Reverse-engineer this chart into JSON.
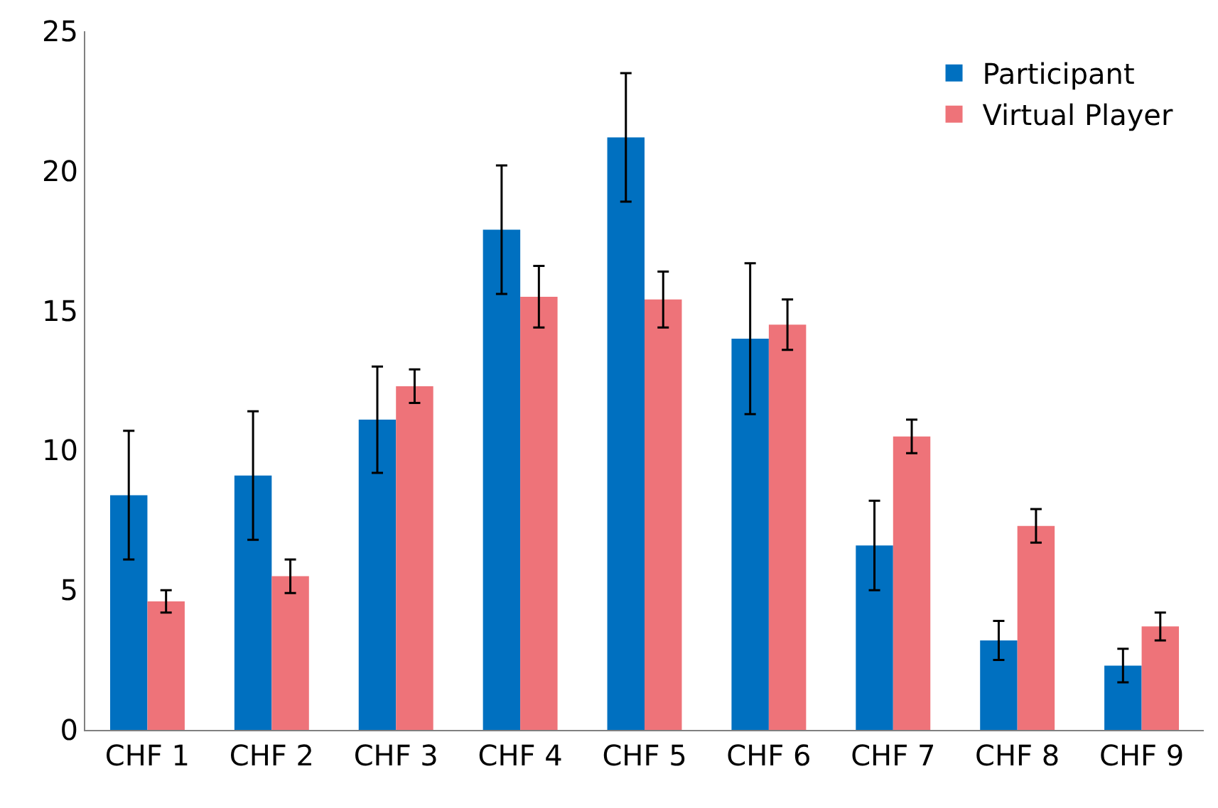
{
  "chart_data": {
    "type": "bar",
    "categories": [
      "CHF 1",
      "CHF 2",
      "CHF 3",
      "CHF 4",
      "CHF 5",
      "CHF 6",
      "CHF 7",
      "CHF 8",
      "CHF 9"
    ],
    "series": [
      {
        "name": "Participant",
        "color": "#0070c0",
        "values": [
          8.4,
          9.1,
          11.1,
          17.9,
          21.2,
          14.0,
          6.6,
          3.2,
          2.3
        ],
        "errors": [
          2.3,
          2.3,
          1.9,
          2.3,
          2.3,
          2.7,
          1.6,
          0.7,
          0.6
        ]
      },
      {
        "name": "Virtual Player",
        "color": "#ee7379",
        "values": [
          4.6,
          5.5,
          12.3,
          15.5,
          15.4,
          14.5,
          10.5,
          7.3,
          3.7
        ],
        "errors": [
          0.4,
          0.6,
          0.6,
          1.1,
          1.0,
          0.9,
          0.6,
          0.6,
          0.5
        ]
      }
    ],
    "ylim": [
      0,
      25
    ],
    "yticks": [
      0,
      5,
      10,
      15,
      20,
      25
    ],
    "legend": "top right"
  }
}
